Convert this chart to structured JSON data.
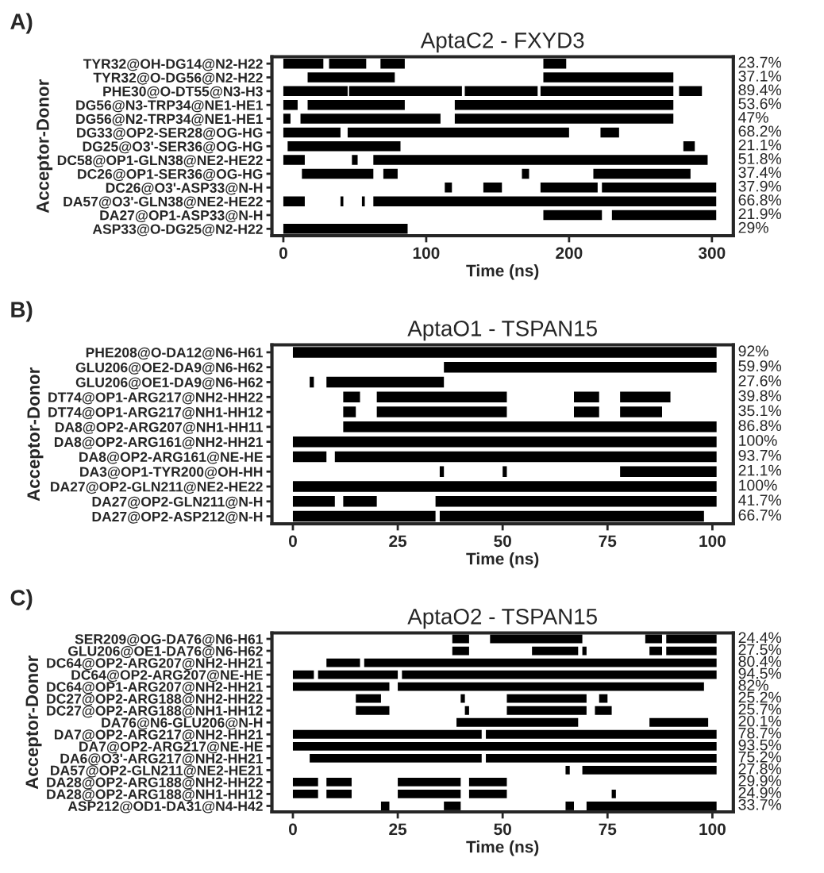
{
  "chart_data": [
    {
      "type": "bar",
      "orientation": "horizontal",
      "title": "AptaC2 - FXYD3",
      "xlabel": "Time (ns)",
      "ylabel": "Acceptor-Donor",
      "annotations": [
        "A)"
      ],
      "categories": [
        "TYR32@OH-DG14@N2-H22",
        "TYR32@O-DG56@N2-H22",
        "PHE30@O-DT55@N3-H3",
        "DG56@N3-TRP34@NE1-HE1",
        "DG56@N2-TRP34@NE1-HE1",
        "DG33@OP2-SER28@OG-HG",
        "DG25@O3'-SER36@OG-HG",
        "DC58@OP1-GLN38@NE2-HE22",
        "DC26@OP1-SER36@OG-HG",
        "DC26@O3'-ASP33@N-H",
        "DA57@O3'-GLN38@NE2-HE22",
        "DA27@OP1-ASP33@N-H",
        "ASP33@O-DG25@N2-H22"
      ],
      "value_labels": [
        "23.7%",
        "37.1%",
        "89.4%",
        "53.6%",
        "47%",
        "68.2%",
        "21.1%",
        "51.8%",
        "37.4%",
        "37.9%",
        "66.8%",
        "21.9%",
        "29%"
      ],
      "xlim": [
        -8,
        315
      ],
      "xticks": [
        0,
        100,
        200,
        300
      ],
      "series": [
        {
          "color": "#000000",
          "base": [
            0,
            17,
            0,
            0,
            0,
            0,
            3,
            0,
            13,
            113,
            0,
            182,
            0
          ],
          "values": [
            28,
            61,
            45,
            10,
            5,
            40,
            79,
            15,
            50,
            5,
            15,
            41,
            87
          ]
        },
        {
          "color": "#000000",
          "base": [
            32,
            182,
            46,
            17,
            12,
            45,
            280,
            48,
            70,
            140,
            40,
            230,
            null
          ],
          "values": [
            26,
            91,
            79,
            68,
            98,
            155,
            8,
            4,
            10,
            13,
            2,
            73,
            null
          ]
        },
        {
          "color": "#000000",
          "base": [
            68,
            null,
            127,
            120,
            120,
            222,
            null,
            63,
            167,
            180,
            55,
            null,
            null
          ],
          "values": [
            17,
            null,
            51,
            153,
            153,
            13,
            null,
            234,
            5,
            40,
            2,
            null,
            null
          ]
        },
        {
          "color": "#000000",
          "base": [
            182,
            null,
            180,
            null,
            null,
            null,
            null,
            null,
            217,
            223,
            63,
            null,
            null
          ],
          "values": [
            16,
            null,
            93,
            null,
            null,
            null,
            null,
            null,
            68,
            80,
            240,
            null,
            null
          ]
        },
        {
          "color": "#000000",
          "base": [
            null,
            null,
            277,
            null,
            null,
            null,
            null,
            null,
            null,
            null,
            null,
            null,
            null
          ],
          "values": [
            null,
            null,
            16,
            null,
            null,
            null,
            null,
            null,
            null,
            null,
            null,
            null,
            null
          ]
        }
      ]
    },
    {
      "type": "bar",
      "orientation": "horizontal",
      "title": "AptaO1 - TSPAN15",
      "xlabel": "Time (ns)",
      "ylabel": "Acceptor-Donor",
      "annotations": [
        "B)"
      ],
      "categories": [
        "PHE208@O-DA12@N6-H61",
        "GLU206@OE2-DA9@N6-H62",
        "GLU206@OE1-DA9@N6-H62",
        "DT74@OP1-ARG217@NH2-HH22",
        "DT74@OP1-ARG217@NH1-HH12",
        "DA8@OP2-ARG207@NH1-HH11",
        "DA8@OP2-ARG161@NH2-HH21",
        "DA8@OP2-ARG161@NE-HE",
        "DA3@OP1-TYR200@OH-HH",
        "DA27@OP2-GLN211@NE2-HE22",
        "DA27@OP2-GLN211@N-H",
        "DA27@OP2-ASP212@N-H"
      ],
      "value_labels": [
        "92%",
        "59.9%",
        "27.6%",
        "39.8%",
        "35.1%",
        "86.8%",
        "100%",
        "93.7%",
        "21.1%",
        "100%",
        "41.7%",
        "66.7%"
      ],
      "xlim": [
        -5,
        105
      ],
      "xticks": [
        0,
        25,
        50,
        75,
        100
      ],
      "series": [
        {
          "color": "#000000",
          "base": [
            0,
            36,
            4,
            12,
            12,
            12,
            0,
            0,
            35,
            0,
            0,
            0
          ],
          "values": [
            101,
            65,
            1,
            4,
            3,
            89,
            101,
            8,
            1,
            101,
            10,
            34
          ]
        },
        {
          "color": "#000000",
          "base": [
            null,
            null,
            8,
            20,
            20,
            null,
            null,
            10,
            50,
            null,
            12,
            35
          ],
          "values": [
            null,
            null,
            28,
            31,
            31,
            null,
            null,
            91,
            1,
            null,
            8,
            63
          ]
        },
        {
          "color": "#000000",
          "base": [
            null,
            null,
            null,
            67,
            67,
            null,
            null,
            null,
            78,
            null,
            34,
            null
          ],
          "values": [
            null,
            null,
            null,
            6,
            6,
            null,
            null,
            null,
            23,
            null,
            67,
            null
          ]
        },
        {
          "color": "#000000",
          "base": [
            null,
            null,
            null,
            78,
            78,
            null,
            null,
            null,
            null,
            null,
            null,
            null
          ],
          "values": [
            null,
            null,
            null,
            12,
            10,
            null,
            null,
            null,
            null,
            null,
            null,
            null
          ]
        }
      ]
    },
    {
      "type": "bar",
      "orientation": "horizontal",
      "title": "AptaO2 - TSPAN15",
      "xlabel": "Time (ns)",
      "ylabel": "Acceptor-Donor",
      "annotations": [
        "C)"
      ],
      "categories": [
        "SER209@OG-DA76@N6-H61",
        "GLU206@OE1-DA76@N6-H62",
        "DC64@OP2-ARG207@NH2-HH21",
        "DC64@OP2-ARG207@NE-HE",
        "DC64@OP1-ARG207@NH2-HH21",
        "DC27@OP2-ARG188@NH2-HH22",
        "DC27@OP2-ARG188@NH1-HH12",
        "DA76@N6-GLU206@N-H",
        "DA7@OP2-ARG217@NH2-HH21",
        "DA7@OP2-ARG217@NE-HE",
        "DA6@O3'-ARG217@NH2-HH21",
        "DA57@OP2-GLN211@NE2-HE21",
        "DA28@OP2-ARG188@NH2-HH22",
        "DA28@OP2-ARG188@NH1-HH12",
        "ASP212@OD1-DA31@N4-H42"
      ],
      "value_labels": [
        "24.4%",
        "27.5%",
        "80.4%",
        "94.5%",
        "82%",
        "25.2%",
        "25.7%",
        "20.1%",
        "78.7%",
        "93.5%",
        "75.2%",
        "27.8%",
        "29.9%",
        "24.9%",
        "33.7%"
      ],
      "xlim": [
        -5,
        105
      ],
      "xticks": [
        0,
        25,
        50,
        75,
        100
      ],
      "series": [
        {
          "color": "#000000",
          "base": [
            38,
            38,
            8,
            0,
            0,
            15,
            15,
            39,
            0,
            0,
            4,
            65,
            0,
            0,
            21
          ],
          "values": [
            4,
            4,
            8,
            5,
            23,
            6,
            8,
            29,
            45,
            101,
            41,
            1,
            6,
            6,
            2
          ]
        },
        {
          "color": "#000000",
          "base": [
            47,
            57,
            17,
            6,
            25,
            40,
            41,
            85,
            46,
            null,
            46,
            69,
            8,
            8,
            36
          ],
          "values": [
            22,
            11,
            84,
            19,
            73,
            1,
            1,
            14,
            55,
            null,
            55,
            32,
            6,
            6,
            4
          ]
        },
        {
          "color": "#000000",
          "base": [
            84,
            69,
            null,
            26,
            null,
            51,
            51,
            null,
            null,
            null,
            null,
            null,
            25,
            25,
            65
          ],
          "values": [
            4,
            1,
            null,
            75,
            null,
            19,
            19,
            null,
            null,
            null,
            null,
            null,
            15,
            15,
            2
          ]
        },
        {
          "color": "#000000",
          "base": [
            89,
            85,
            null,
            null,
            null,
            73,
            72,
            null,
            null,
            null,
            null,
            null,
            42,
            42,
            70
          ],
          "values": [
            12,
            3,
            null,
            null,
            null,
            2,
            4,
            null,
            null,
            null,
            null,
            null,
            9,
            9,
            31
          ]
        },
        {
          "color": "#000000",
          "base": [
            null,
            89,
            null,
            null,
            null,
            null,
            null,
            null,
            null,
            null,
            null,
            null,
            null,
            76,
            null
          ],
          "values": [
            null,
            12,
            null,
            null,
            null,
            null,
            null,
            null,
            null,
            null,
            null,
            null,
            null,
            1,
            null
          ]
        }
      ]
    }
  ]
}
